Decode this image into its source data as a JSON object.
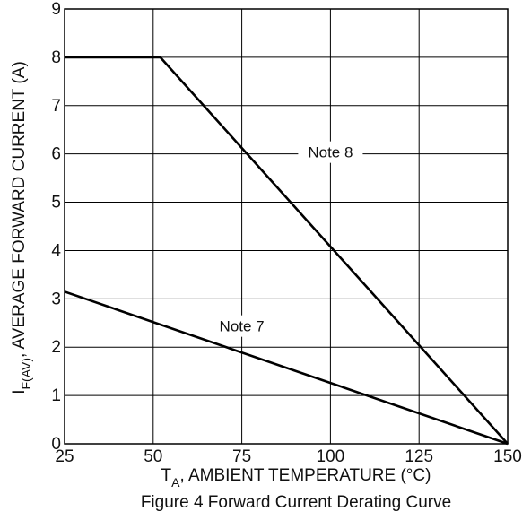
{
  "chart_data": {
    "type": "line",
    "title": "Figure 4 Forward Current Derating Curve",
    "xlabel": {
      "main": "T",
      "sub": "A",
      "rest": ", AMBIENT TEMPERATURE (°C)"
    },
    "ylabel": {
      "main": "I",
      "sub": "F(AV)",
      "rest": ", AVERAGE FORWARD CURRENT (A)"
    },
    "xlim": [
      25,
      150
    ],
    "ylim": [
      0,
      9
    ],
    "xticks": [
      25,
      50,
      75,
      100,
      125,
      150
    ],
    "yticks": [
      0,
      1,
      2,
      3,
      4,
      5,
      6,
      7,
      8,
      9
    ],
    "grid": true,
    "series": [
      {
        "name": "Note 8",
        "x": [
          25,
          52,
          150
        ],
        "y": [
          8,
          8,
          0
        ]
      },
      {
        "name": "Note 7",
        "x": [
          25,
          150
        ],
        "y": [
          3.15,
          0
        ]
      }
    ],
    "annotations": [
      {
        "text": "Note 8",
        "x": 100,
        "y": 6
      },
      {
        "text": "Note 7",
        "x": 75,
        "y": 2.4
      }
    ]
  }
}
